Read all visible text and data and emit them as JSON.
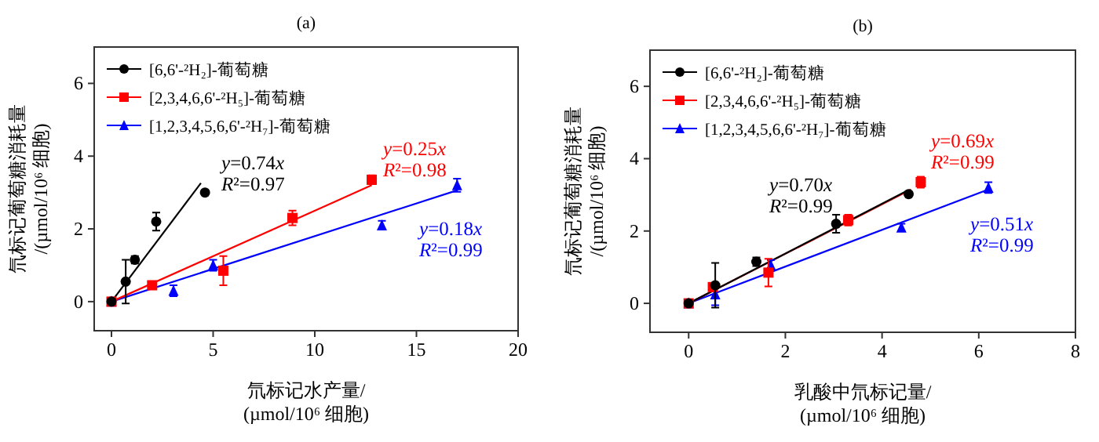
{
  "chart_data": [
    {
      "type": "scatter",
      "title": "(a)",
      "xlabel": "氘标记水产量/\n(µmol/10⁶ 细胞)",
      "ylabel": "氘标记葡萄糖消耗量\n/(µmol/10⁶ 细胞)",
      "xlim": [
        -0.85,
        20
      ],
      "ylim": [
        -0.8,
        7
      ],
      "xticks": [
        0,
        5,
        10,
        15,
        20
      ],
      "yticks": [
        0,
        2,
        4,
        6
      ],
      "legend": "top left",
      "series": [
        {
          "name": "[6,6'-²H₂]-葡萄糖",
          "color": "#000000",
          "marker": "circle",
          "x": [
            0,
            0.7,
            1.15,
            2.2,
            4.6
          ],
          "values": [
            0,
            0.55,
            1.15,
            2.2,
            3.0
          ],
          "errors": [
            null,
            0.6,
            0.1,
            0.25,
            null
          ]
        },
        {
          "name": "[2,3,4,6,6'-²H₅]-葡萄糖",
          "color": "#ff0000",
          "marker": "square",
          "x": [
            0,
            2.0,
            5.5,
            8.9,
            12.8
          ],
          "values": [
            0,
            0.45,
            0.85,
            2.3,
            3.35
          ],
          "errors": [
            null,
            null,
            0.4,
            0.2,
            0.12
          ]
        },
        {
          "name": "[1,2,3,4,5,6,6'-²H₇]-葡萄糖",
          "color": "#0000ff",
          "marker": "triangle",
          "x": [
            0,
            3.05,
            5.0,
            13.3,
            17.0
          ],
          "values": [
            0,
            0.3,
            1.0,
            2.1,
            3.2
          ],
          "errors": [
            null,
            0.15,
            0.15,
            0.12,
            0.18
          ]
        },
        {
          "type": "line",
          "color": "#000000",
          "x": [
            0,
            4.4
          ],
          "values": [
            0,
            3.26
          ]
        },
        {
          "type": "line",
          "color": "#ff0000",
          "x": [
            0,
            12.8
          ],
          "values": [
            0,
            3.2
          ]
        },
        {
          "type": "line",
          "color": "#0000ff",
          "x": [
            0,
            17.0
          ],
          "values": [
            0,
            3.06
          ]
        }
      ],
      "annotations": [
        "y=0.74x",
        "R²=0.97",
        "y=0.25x",
        "R²=0.98",
        "y=0.18x",
        "R²=0.99"
      ]
    },
    {
      "type": "scatter",
      "title": "(b)",
      "xlabel": "乳酸中氘标记量/\n(µmol/10⁶ 细胞)",
      "ylabel": "氘标记葡萄糖消耗量\n/(µmol/10⁶ 细胞)",
      "xlim": [
        -0.8,
        8
      ],
      "ylim": [
        -0.8,
        7
      ],
      "xticks": [
        0,
        2,
        4,
        6,
        8
      ],
      "yticks": [
        0,
        2,
        4,
        6
      ],
      "legend": "top left",
      "series": [
        {
          "name": "[6,6'-²H₂]-葡萄糖",
          "color": "#000000",
          "marker": "circle",
          "x": [
            0,
            0.55,
            1.4,
            3.05,
            4.55
          ],
          "values": [
            0,
            0.5,
            1.15,
            2.2,
            3.02
          ],
          "errors": [
            null,
            0.62,
            0.12,
            0.25,
            null
          ]
        },
        {
          "name": "[2,3,4,6,6'-²H₅]-葡萄糖",
          "color": "#ff0000",
          "marker": "square",
          "x": [
            0,
            0.5,
            1.65,
            3.3,
            4.8
          ],
          "values": [
            0,
            0.45,
            0.85,
            2.3,
            3.35
          ],
          "errors": [
            null,
            null,
            0.38,
            0.15,
            0.15
          ]
        },
        {
          "name": "[1,2,3,4,5,6,6'-²H₇]-葡萄糖",
          "color": "#0000ff",
          "marker": "triangle",
          "x": [
            0,
            0.55,
            1.7,
            4.4,
            6.2
          ],
          "values": [
            0,
            0.25,
            1.05,
            2.1,
            3.2
          ],
          "errors": [
            null,
            0.3,
            0.15,
            0.1,
            0.15
          ]
        },
        {
          "type": "line",
          "color": "#000000",
          "x": [
            0,
            4.5
          ],
          "values": [
            0,
            3.1
          ]
        },
        {
          "type": "line",
          "color": "#ff0000",
          "x": [
            0,
            4.6
          ],
          "values": [
            0,
            3.15
          ]
        },
        {
          "type": "line",
          "color": "#0000ff",
          "x": [
            0,
            6.2
          ],
          "values": [
            0,
            3.15
          ]
        }
      ],
      "annotations": [
        "y=0.70x",
        "R²=0.99",
        "y=0.69x",
        "R²=0.99",
        "y=0.51x",
        "R²=0.99"
      ]
    }
  ]
}
